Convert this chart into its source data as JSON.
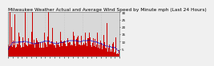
{
  "title": "Milwaukee Weather Actual and Average Wind Speed by Minute mph (Last 24 Hours)",
  "title_fontsize": 4.2,
  "background_color": "#f0f0f0",
  "plot_bg_color": "#d8d8d8",
  "bar_color": "#cc0000",
  "line_color": "#0000cc",
  "n_points": 1440,
  "y_max": 30,
  "y_min": 0,
  "yticks": [
    5,
    10,
    15,
    20,
    25,
    30
  ],
  "ytick_labels": [
    "5",
    "10",
    "15",
    "20",
    "25",
    "30"
  ],
  "grid_color": "#bbbbbb",
  "n_grid_lines": 7,
  "seed": 42
}
